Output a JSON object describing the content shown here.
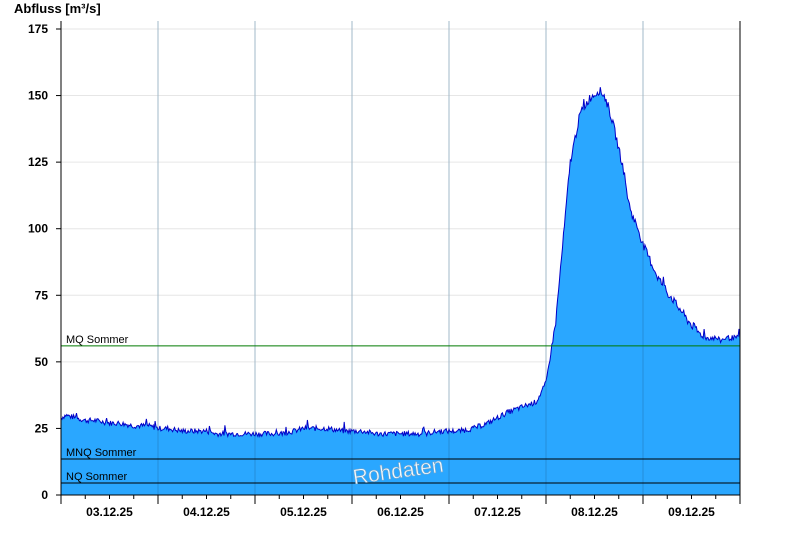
{
  "chart_data": {
    "type": "area",
    "ylabel": "Abfluss [m³/s]",
    "xlabel": "",
    "ylim": [
      0,
      178
    ],
    "yticks": [
      0,
      25,
      50,
      75,
      100,
      125,
      150,
      175
    ],
    "x_tick_labels": [
      "03.12.25",
      "04.12.25",
      "05.12.25",
      "06.12.25",
      "07.12.25",
      "08.12.25",
      "09.12.25"
    ],
    "x_range_days": [
      2.0,
      9.0
    ],
    "x_day_labels_at_noon": [
      3,
      4,
      5,
      6,
      7,
      8,
      9
    ],
    "grid": true,
    "watermark": "Rohdaten",
    "fill_color": "#2aa7ff",
    "line_color": "#0000c8",
    "series": [
      {
        "x": [
          2.0,
          2.05,
          2.15,
          2.25,
          2.35,
          2.5,
          2.6,
          2.75,
          2.9,
          3.0,
          3.1,
          3.25,
          3.4,
          3.5,
          3.6,
          3.75,
          3.9,
          4.0,
          4.1,
          4.25,
          4.4,
          4.5,
          4.6,
          4.75,
          4.9,
          5.0,
          5.1,
          5.25,
          5.4,
          5.5,
          5.6,
          5.75,
          5.9,
          6.0,
          6.1,
          6.25,
          6.4,
          6.5,
          6.6,
          6.75,
          6.9,
          7.0,
          7.1,
          7.25,
          7.35,
          7.45,
          7.55,
          7.6,
          7.65,
          7.7,
          7.75,
          7.8,
          7.85,
          7.9,
          7.95,
          8.0,
          8.05,
          8.1,
          8.15,
          8.2,
          8.25,
          8.3,
          8.35,
          8.4,
          8.45,
          8.5,
          8.55,
          8.6,
          8.65,
          8.7,
          8.75,
          8.8,
          8.85,
          8.9,
          8.95,
          9.0
        ],
        "y": [
          29,
          30,
          29,
          28,
          28,
          27,
          27,
          26,
          26,
          25,
          25,
          24,
          24,
          24,
          23,
          23,
          23,
          23,
          23,
          23,
          24,
          25,
          25,
          25,
          24,
          24,
          24,
          23,
          23,
          23,
          23,
          23,
          24,
          24,
          24,
          25,
          27,
          29,
          31,
          33,
          35,
          42,
          65,
          125,
          143,
          149,
          152,
          150,
          145,
          138,
          130,
          122,
          110,
          104,
          100,
          94,
          90,
          86,
          82,
          79,
          76,
          74,
          71,
          69,
          66,
          64,
          62,
          60,
          59,
          59,
          59,
          58,
          59,
          59,
          59,
          59
        ]
      }
    ],
    "reference_lines": [
      {
        "label": "MQ Sommer",
        "value": 56.0,
        "color": "#007a00"
      },
      {
        "label": "MNQ Sommer",
        "value": 13.5,
        "color": "#000000"
      },
      {
        "label": "NQ Sommer",
        "value": 4.5,
        "color": "#000000"
      }
    ]
  }
}
